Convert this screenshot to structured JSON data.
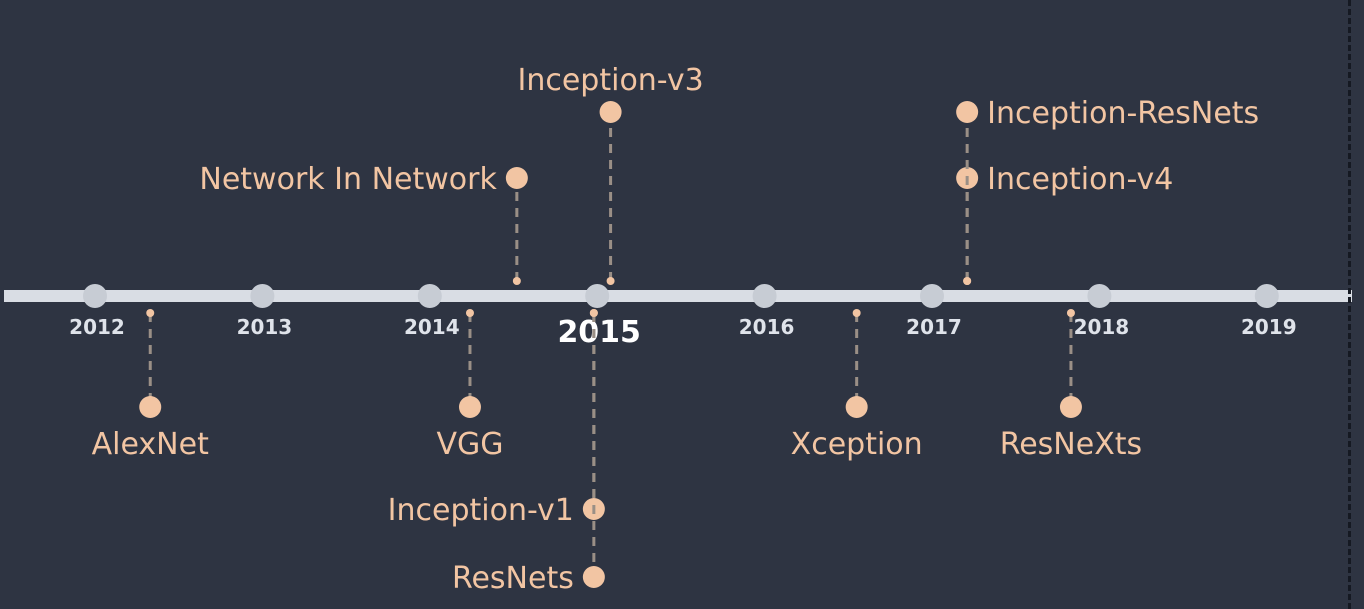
{
  "colors": {
    "background": "#2e3442",
    "axis": "#d9dde4",
    "year_dot": "#c7ccd4",
    "accent": "#f2c5a3",
    "connector": "#9a8f86"
  },
  "years": [
    {
      "label": "2012",
      "value": 2012
    },
    {
      "label": "2013",
      "value": 2013
    },
    {
      "label": "2014",
      "value": 2014
    },
    {
      "label": "2015",
      "value": 2015,
      "highlight": true
    },
    {
      "label": "2016",
      "value": 2016
    },
    {
      "label": "2017",
      "value": 2017
    },
    {
      "label": "2018",
      "value": 2018
    },
    {
      "label": "2019",
      "value": 2019
    }
  ],
  "events": [
    {
      "name": "AlexNet",
      "year": 2012.33,
      "side": "below",
      "level": 1
    },
    {
      "name": "Network In Network",
      "year": 2014.52,
      "side": "above",
      "level": 1
    },
    {
      "name": "VGG",
      "year": 2014.24,
      "side": "below",
      "level": 1
    },
    {
      "name": "Inception-v3",
      "year": 2015.08,
      "side": "above",
      "level": 2
    },
    {
      "name": "Inception-v1",
      "year": 2014.98,
      "side": "below",
      "level": 2
    },
    {
      "name": "ResNets",
      "year": 2014.98,
      "side": "below",
      "level": 3
    },
    {
      "name": "Xception",
      "year": 2016.55,
      "side": "below",
      "level": 1
    },
    {
      "name": "Inception-v4",
      "year": 2017.21,
      "side": "above",
      "level": 1
    },
    {
      "name": "Inception-ResNets",
      "year": 2017.21,
      "side": "above",
      "level": 2
    },
    {
      "name": "ResNeXts",
      "year": 2017.83,
      "side": "below",
      "level": 1
    }
  ]
}
